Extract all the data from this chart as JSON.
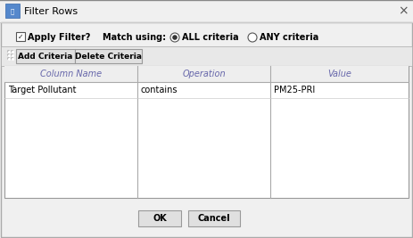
{
  "title": "Filter Rows",
  "bg_color": "#f0f0f0",
  "title_text": "Filter Rows",
  "checkbox_label": "Apply Filter?",
  "match_label": "Match using:",
  "radio1_label": "ALL criteria",
  "radio2_label": "ANY criteria",
  "btn1_label": "Add Criteria",
  "btn2_label": "Delete Criteria",
  "col_headers": [
    "Column Name",
    "Operation",
    "Value"
  ],
  "row1": [
    "Target Pollutant",
    "contains",
    "PM25-PRI"
  ],
  "ok_label": "OK",
  "cancel_label": "Cancel",
  "border_color": "#aaaaaa",
  "header_text_color": "#6666aa",
  "body_text_color": "#000000",
  "title_bar_bg": "#f0f0f0",
  "toolbar_bg": "#e8e8e8",
  "table_header_bg": "#eeeeee",
  "btn_bg": "#e0e0e0",
  "white": "#ffffff"
}
